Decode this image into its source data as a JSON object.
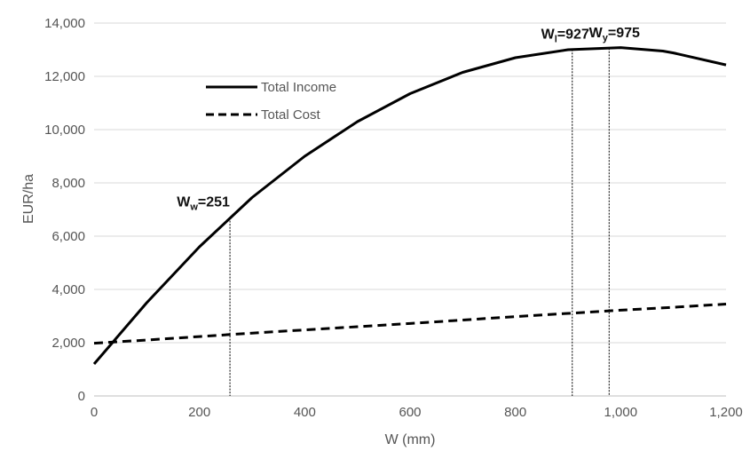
{
  "chart_data": {
    "type": "line",
    "xlabel": "W (mm)",
    "ylabel": "EUR/ha",
    "xlim": [
      0,
      1200
    ],
    "ylim": [
      0,
      14000
    ],
    "x_ticks": [
      0,
      200,
      400,
      600,
      800,
      1000,
      1200
    ],
    "x_tick_labels": [
      "0",
      "200",
      "400",
      "600",
      "800",
      "1,000",
      "1,200"
    ],
    "y_ticks": [
      0,
      2000,
      4000,
      6000,
      8000,
      10000,
      12000,
      14000
    ],
    "y_tick_labels": [
      "0",
      "2,000",
      "4,000",
      "6,000",
      "8,000",
      "10,000",
      "12,000",
      "14,000"
    ],
    "grid": "horizontal",
    "legend_position": "upper-left",
    "series": [
      {
        "name": "Total Income",
        "style": "solid",
        "color": "#000000",
        "x": [
          0,
          100,
          200,
          300,
          400,
          500,
          600,
          700,
          800,
          900,
          1000,
          1080,
          1100,
          1200
        ],
        "y": [
          1200,
          3500,
          5600,
          7450,
          9000,
          10300,
          11350,
          12150,
          12700,
          13000,
          13080,
          12950,
          12880,
          12430
        ]
      },
      {
        "name": "Total Cost",
        "style": "dashed",
        "color": "#000000",
        "x": [
          0,
          100,
          200,
          300,
          400,
          500,
          600,
          700,
          800,
          900,
          1000,
          1100,
          1200
        ],
        "y": [
          1980,
          2100,
          2230,
          2360,
          2480,
          2600,
          2720,
          2850,
          2980,
          3100,
          3220,
          3330,
          3450
        ]
      }
    ],
    "annotations": [
      {
        "main": "W",
        "sub": "w",
        "value": "=251",
        "x": 258,
        "y_top": 6580
      },
      {
        "main": "W",
        "sub": "l",
        "value": "=927",
        "x": 908,
        "y_top": 13010
      },
      {
        "main": "W",
        "sub": "y",
        "value": "=975",
        "x": 978,
        "y_top": 13060
      }
    ]
  }
}
